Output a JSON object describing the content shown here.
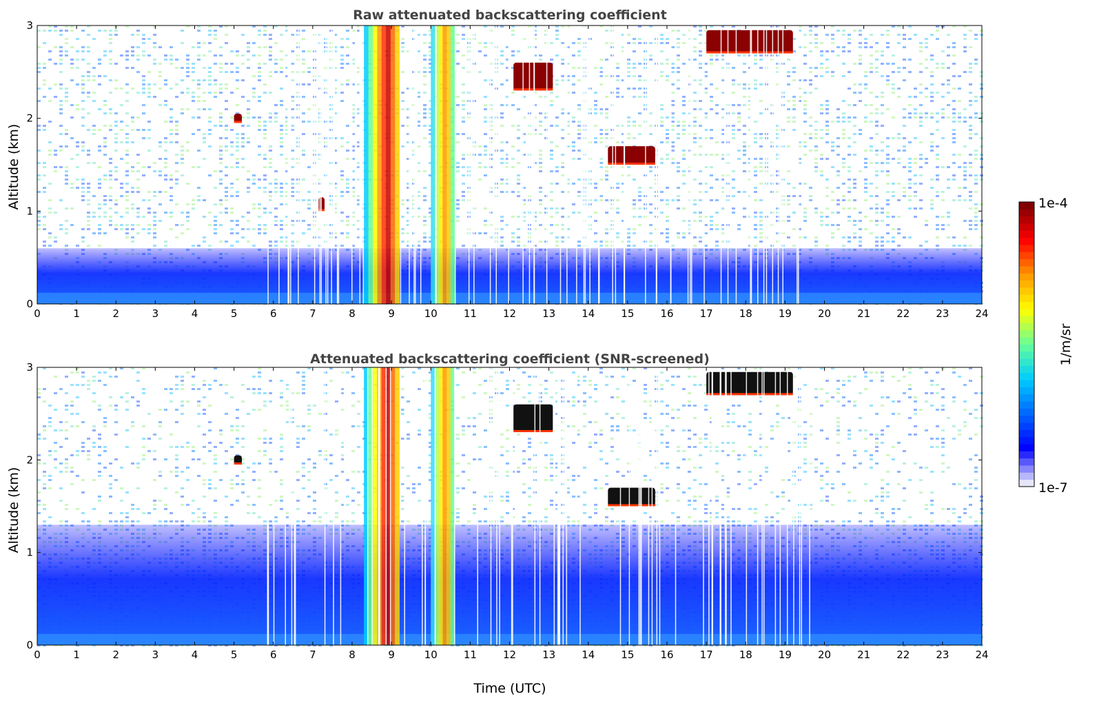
{
  "chart_data": [
    {
      "type": "heatmap",
      "title": "Raw attenuated backscattering coefficient",
      "xlabel": "",
      "ylabel": "Altitude (km)",
      "xlim": [
        0,
        24
      ],
      "ylim": [
        0,
        3
      ],
      "x_ticks": [
        "0",
        "1",
        "2",
        "3",
        "4",
        "5",
        "6",
        "7",
        "8",
        "9",
        "10",
        "11",
        "12",
        "13",
        "14",
        "15",
        "16",
        "17",
        "18",
        "19",
        "20",
        "21",
        "22",
        "23",
        "24"
      ],
      "y_ticks": [
        "0",
        "1",
        "2",
        "3"
      ],
      "screened": false,
      "features": [
        {
          "kind": "boundary_layer",
          "start_h": 0,
          "end_h": 24,
          "top_km": 0.6
        },
        {
          "kind": "precipitation_column",
          "start_h": 8.3,
          "end_h": 9.2,
          "top_km": 3.0,
          "intensity": "high"
        },
        {
          "kind": "precipitation_column",
          "start_h": 10.0,
          "end_h": 10.6,
          "top_km": 3.0,
          "intensity": "medium"
        },
        {
          "kind": "cloud",
          "start_h": 12.1,
          "end_h": 13.1,
          "base_km": 2.3,
          "top_km": 2.6
        },
        {
          "kind": "cloud",
          "start_h": 14.5,
          "end_h": 15.7,
          "base_km": 1.5,
          "top_km": 1.7
        },
        {
          "kind": "cloud",
          "start_h": 17.0,
          "end_h": 19.2,
          "base_km": 2.7,
          "top_km": 2.95
        },
        {
          "kind": "cloud",
          "start_h": 5.0,
          "end_h": 5.2,
          "base_km": 1.95,
          "top_km": 2.05
        },
        {
          "kind": "cloud",
          "start_h": 7.15,
          "end_h": 7.3,
          "base_km": 1.0,
          "top_km": 1.15
        }
      ],
      "colormap": "jet",
      "scale": "log"
    },
    {
      "type": "heatmap",
      "title": "Attenuated backscattering coefficient (SNR-screened)",
      "xlabel": "Time (UTC)",
      "ylabel": "Altitude (km)",
      "xlim": [
        0,
        24
      ],
      "ylim": [
        0,
        3
      ],
      "x_ticks": [
        "0",
        "1",
        "2",
        "3",
        "4",
        "5",
        "6",
        "7",
        "8",
        "9",
        "10",
        "11",
        "12",
        "13",
        "14",
        "15",
        "16",
        "17",
        "18",
        "19",
        "20",
        "21",
        "22",
        "23",
        "24"
      ],
      "y_ticks": [
        "0",
        "1",
        "2",
        "3"
      ],
      "screened": true,
      "features": [
        {
          "kind": "boundary_layer",
          "start_h": 0,
          "end_h": 24,
          "top_km": 1.3
        },
        {
          "kind": "precipitation_column",
          "start_h": 8.3,
          "end_h": 9.2,
          "top_km": 3.0,
          "intensity": "high"
        },
        {
          "kind": "precipitation_column",
          "start_h": 10.0,
          "end_h": 10.6,
          "top_km": 3.0,
          "intensity": "medium"
        },
        {
          "kind": "cloud",
          "start_h": 12.1,
          "end_h": 13.1,
          "base_km": 2.3,
          "top_km": 2.6
        },
        {
          "kind": "cloud",
          "start_h": 14.5,
          "end_h": 15.7,
          "base_km": 1.5,
          "top_km": 1.7
        },
        {
          "kind": "cloud",
          "start_h": 17.0,
          "end_h": 19.2,
          "base_km": 2.7,
          "top_km": 2.95
        },
        {
          "kind": "cloud",
          "start_h": 5.0,
          "end_h": 5.2,
          "base_km": 1.95,
          "top_km": 2.05
        }
      ],
      "colormap": "jet",
      "scale": "log"
    }
  ],
  "colorbar": {
    "label": "1/m/sr",
    "max_label": "1e-4",
    "min_label": "1e-7",
    "colors": [
      "#e6e6fa",
      "#0000ff",
      "#0066ff",
      "#00ccff",
      "#66ff99",
      "#ffff00",
      "#ff9900",
      "#ff0000",
      "#800000"
    ]
  }
}
